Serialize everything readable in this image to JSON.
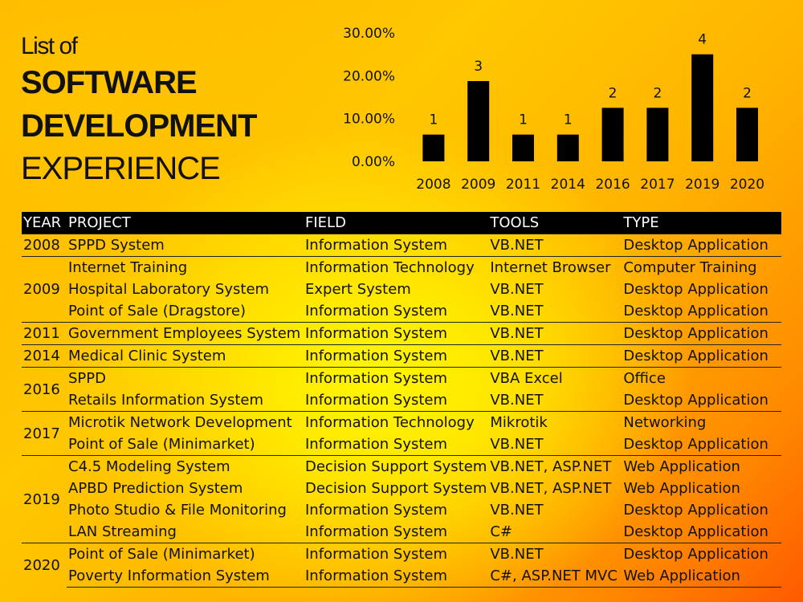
{
  "title": {
    "line1": "List of",
    "line2": "SOFTWARE",
    "line3": "DEVELOPMENT",
    "line4": "EXPERIENCE"
  },
  "chart_data": {
    "type": "bar",
    "categories": [
      "2008",
      "2009",
      "2011",
      "2014",
      "2016",
      "2017",
      "2019",
      "2020"
    ],
    "values": [
      6.25,
      18.75,
      6.25,
      6.25,
      12.5,
      12.5,
      25.0,
      12.5
    ],
    "data_labels": [
      "1",
      "3",
      "1",
      "1",
      "2",
      "2",
      "4",
      "2"
    ],
    "yticks": [
      "0.00%",
      "10.00%",
      "20.00%",
      "30.00%"
    ],
    "ylim": [
      0,
      30
    ],
    "grid": false,
    "legend": "none",
    "bar_color": "#000000"
  },
  "table": {
    "headers": [
      "YEAR",
      "PROJECT",
      "FIELD",
      "TOOLS",
      "TYPE"
    ],
    "groups": [
      {
        "year": "2008",
        "rows": [
          [
            "SPPD System",
            "Information System",
            "VB.NET",
            "Desktop Application"
          ]
        ]
      },
      {
        "year": "2009",
        "rows": [
          [
            "Internet Training",
            "Information Technology",
            "Internet Browser",
            "Computer Training"
          ],
          [
            "Hospital Laboratory System",
            "Expert System",
            "VB.NET",
            "Desktop Application"
          ],
          [
            "Point of Sale (Dragstore)",
            "Information System",
            "VB.NET",
            "Desktop Application"
          ]
        ]
      },
      {
        "year": "2011",
        "rows": [
          [
            "Government Employees System",
            "Information System",
            "VB.NET",
            "Desktop Application"
          ]
        ]
      },
      {
        "year": "2014",
        "rows": [
          [
            "Medical Clinic System",
            "Information System",
            "VB.NET",
            "Desktop Application"
          ]
        ]
      },
      {
        "year": "2016",
        "rows": [
          [
            "SPPD",
            "Information System",
            "VBA Excel",
            "Office"
          ],
          [
            "Retails Information System",
            "Information System",
            "VB.NET",
            "Desktop Application"
          ]
        ]
      },
      {
        "year": "2017",
        "rows": [
          [
            "Microtik Network Development",
            "Information Technology",
            "Mikrotik",
            "Networking"
          ],
          [
            "Point of Sale (Minimarket)",
            "Information System",
            "VB.NET",
            "Desktop Application"
          ]
        ]
      },
      {
        "year": "2019",
        "rows": [
          [
            "C4.5 Modeling System",
            "Decision Support System",
            "VB.NET, ASP.NET",
            "Web Application"
          ],
          [
            "APBD Prediction System",
            "Decision Support System",
            "VB.NET, ASP.NET",
            "Web Application"
          ],
          [
            "Photo Studio & File Monitoring",
            "Information System",
            "VB.NET",
            "Desktop Application"
          ],
          [
            "LAN Streaming",
            "Information System",
            "C#",
            "Desktop Application"
          ]
        ]
      },
      {
        "year": "2020",
        "rows": [
          [
            "Point of Sale (Minimarket)",
            "Information System",
            "VB.NET",
            "Desktop Application"
          ],
          [
            "Poverty Information System",
            "Information System",
            "C#, ASP.NET MVC",
            "Web Application"
          ]
        ]
      }
    ]
  }
}
